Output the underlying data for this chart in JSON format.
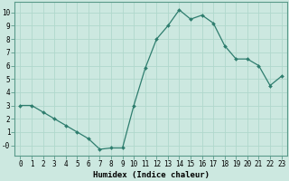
{
  "x": [
    0,
    1,
    2,
    3,
    4,
    5,
    6,
    7,
    8,
    9,
    10,
    11,
    12,
    13,
    14,
    15,
    16,
    17,
    18,
    19,
    20,
    21,
    22,
    23
  ],
  "y": [
    3.0,
    3.0,
    2.5,
    2.0,
    1.5,
    1.0,
    0.5,
    -0.3,
    -0.2,
    -0.2,
    3.0,
    5.8,
    8.0,
    9.0,
    10.2,
    9.5,
    9.8,
    9.2,
    7.5,
    6.5,
    6.5,
    6.0,
    4.5,
    5.2
  ],
  "xlabel": "Humidex (Indice chaleur)",
  "line_color": "#2e7d6e",
  "marker_color": "#2e7d6e",
  "bg_color": "#cce8e0",
  "grid_color": "#b0d8cc",
  "xlim": [
    -0.5,
    23.5
  ],
  "ylim": [
    -0.8,
    10.8
  ],
  "yticks": [
    0,
    1,
    2,
    3,
    4,
    5,
    6,
    7,
    8,
    9,
    10
  ],
  "xtick_labels": [
    "0",
    "1",
    "2",
    "3",
    "4",
    "5",
    "6",
    "7",
    "8",
    "9",
    "10",
    "11",
    "12",
    "13",
    "14",
    "15",
    "16",
    "17",
    "18",
    "19",
    "20",
    "21",
    "22",
    "23"
  ],
  "xlabel_fontsize": 6.5,
  "tick_fontsize": 5.5
}
